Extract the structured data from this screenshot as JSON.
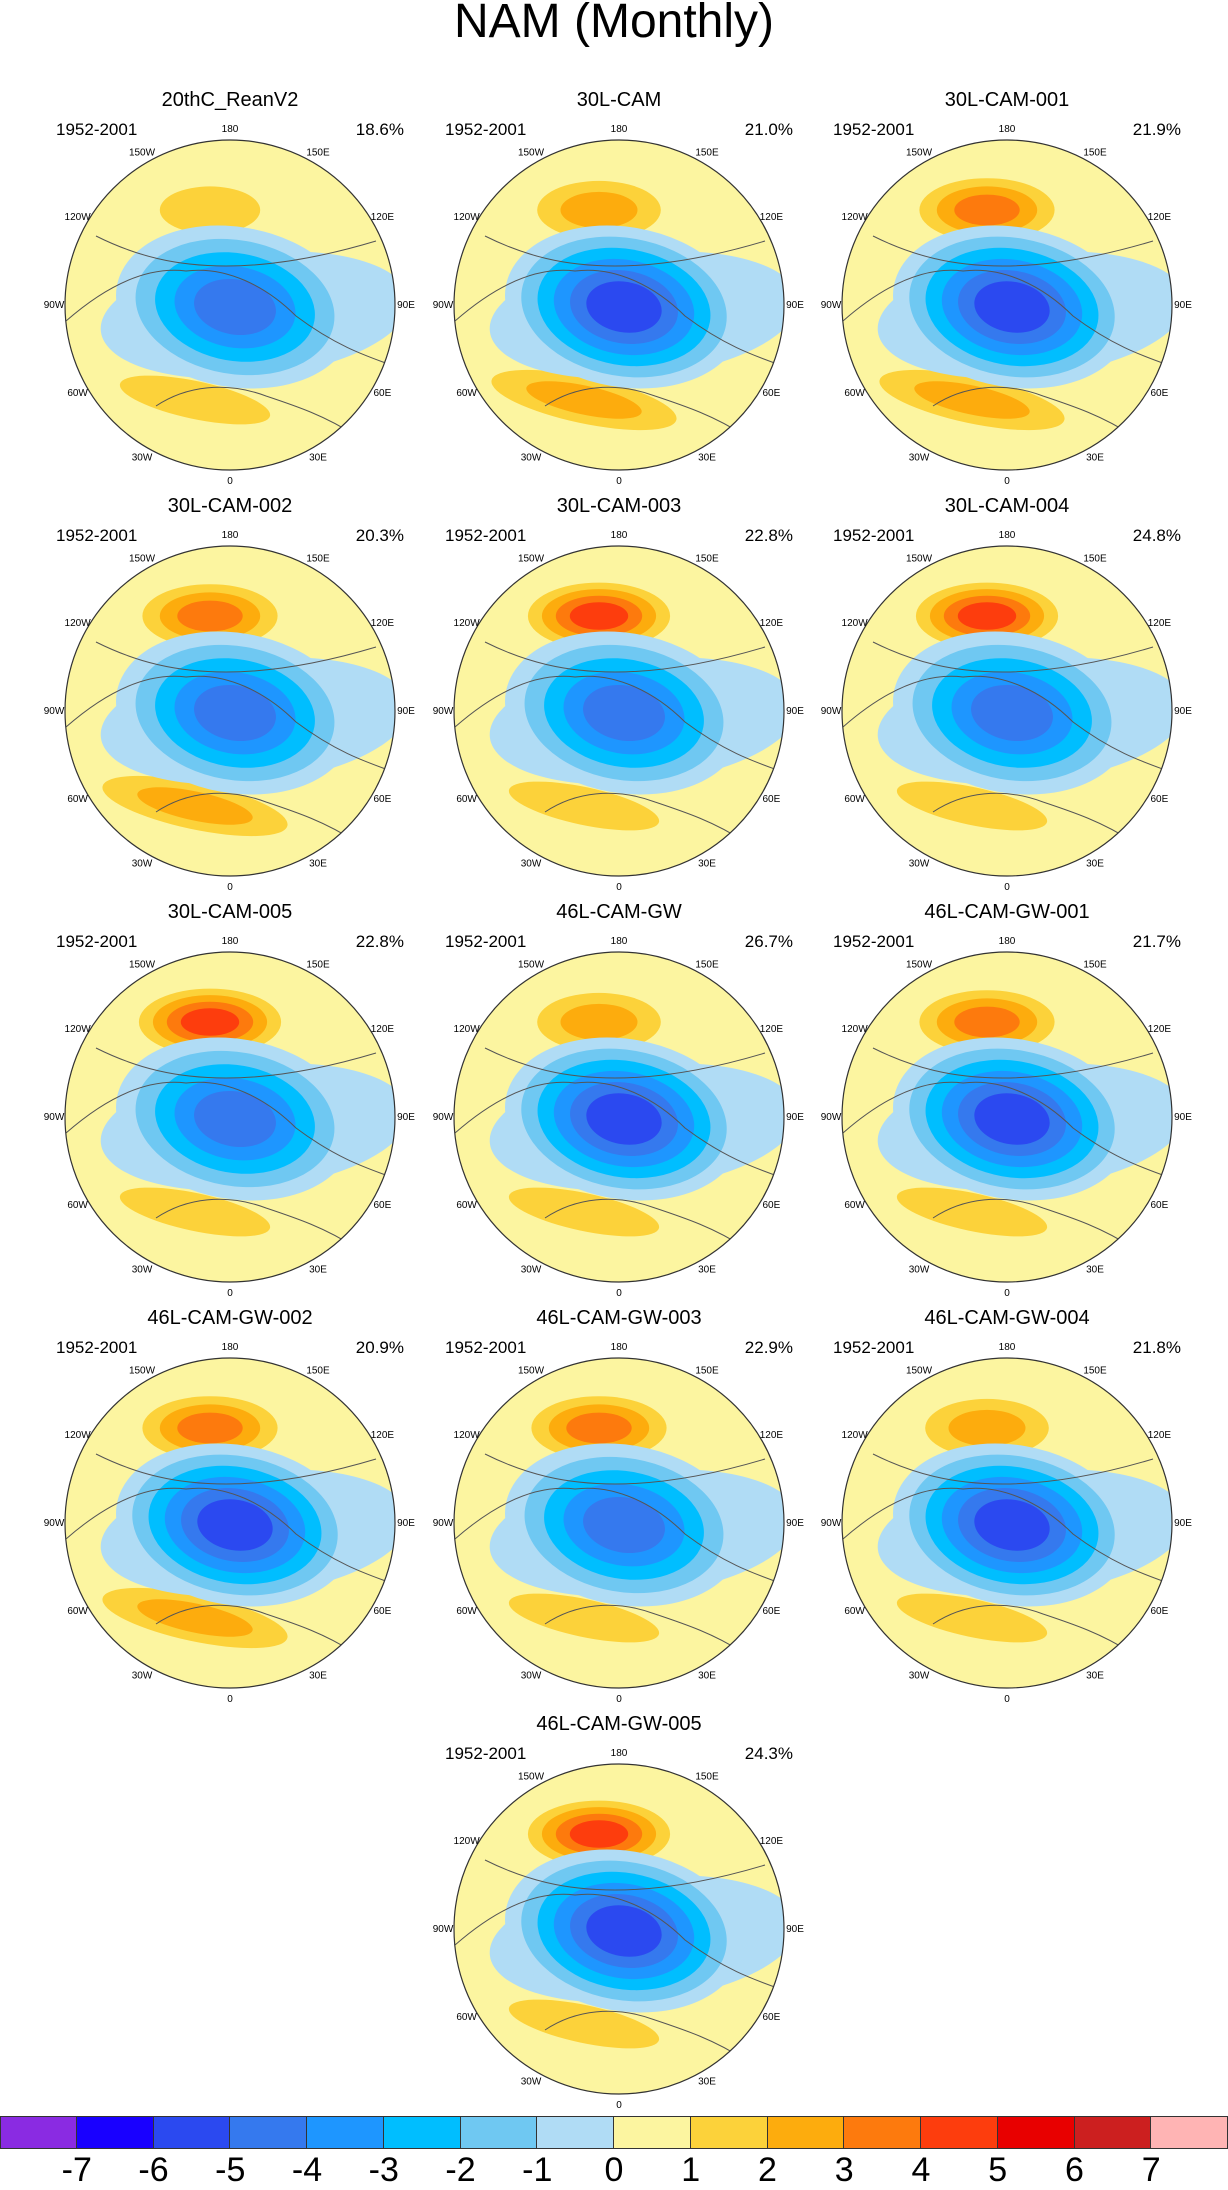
{
  "title": "NAM (Monthly)",
  "panel_period": "1952-2001",
  "panels": [
    {
      "name": "20thC_ReanV2",
      "pct": "18.6%",
      "pos_amp": 1.5,
      "neg_amp": 4.6,
      "pac_pos": 1.5
    },
    {
      "name": "30L-CAM",
      "pct": "21.0%",
      "pos_amp": 2.2,
      "neg_amp": 5.2,
      "pac_pos": 2.3
    },
    {
      "name": "30L-CAM-001",
      "pct": "21.9%",
      "pos_amp": 2.2,
      "neg_amp": 5.2,
      "pac_pos": 3.2
    },
    {
      "name": "30L-CAM-002",
      "pct": "20.3%",
      "pos_amp": 2.1,
      "neg_amp": 5.0,
      "pac_pos": 3.6
    },
    {
      "name": "30L-CAM-003",
      "pct": "22.8%",
      "pos_amp": 2.0,
      "neg_amp": 5.0,
      "pac_pos": 4.3
    },
    {
      "name": "30L-CAM-004",
      "pct": "24.8%",
      "pos_amp": 2.0,
      "neg_amp": 5.0,
      "pac_pos": 4.8
    },
    {
      "name": "30L-CAM-005",
      "pct": "22.8%",
      "pos_amp": 1.8,
      "neg_amp": 5.0,
      "pac_pos": 4.5
    },
    {
      "name": "46L-CAM-GW",
      "pct": "26.7%",
      "pos_amp": 2.0,
      "neg_amp": 5.6,
      "pac_pos": 3.0
    },
    {
      "name": "46L-CAM-GW-001",
      "pct": "21.7%",
      "pos_amp": 2.0,
      "neg_amp": 5.2,
      "pac_pos": 3.4
    },
    {
      "name": "46L-CAM-GW-002",
      "pct": "20.9%",
      "pos_amp": 2.2,
      "neg_amp": 5.2,
      "pac_pos": 3.2
    },
    {
      "name": "46L-CAM-GW-003",
      "pct": "22.9%",
      "pos_amp": 2.0,
      "neg_amp": 5.0,
      "pac_pos": 3.3
    },
    {
      "name": "46L-CAM-GW-004",
      "pct": "21.8%",
      "pos_amp": 2.0,
      "neg_amp": 5.6,
      "pac_pos": 2.3
    },
    {
      "name": "46L-CAM-GW-005",
      "pct": "24.3%",
      "pos_amp": 2.0,
      "neg_amp": 5.6,
      "pac_pos": 4.2
    }
  ],
  "lon_labels": [
    "180",
    "150E",
    "120E",
    "90E",
    "60E",
    "30E",
    "0",
    "30W",
    "60W",
    "90W",
    "120W",
    "150W"
  ],
  "colorbar": {
    "levels": [
      -7,
      -6,
      -5,
      -4,
      -3,
      -2,
      -1,
      0,
      1,
      2,
      3,
      4,
      5,
      6,
      7
    ],
    "tick_labels": [
      "-7",
      "-6",
      "-5",
      "-4",
      "-3",
      "-2",
      "-1",
      "0",
      "1",
      "2",
      "3",
      "4",
      "5",
      "6",
      "7"
    ],
    "colors": [
      "#8a2be2",
      "#1900ff",
      "#2b49f0",
      "#3579ee",
      "#1e96ff",
      "#00beff",
      "#6fc8f2",
      "#b0dcf5",
      "#fcf5a0",
      "#fcd23a",
      "#fdac0d",
      "#fd7a0d",
      "#fd3d0d",
      "#e80000",
      "#cc1f1f",
      "#ffb4b4"
    ]
  }
}
